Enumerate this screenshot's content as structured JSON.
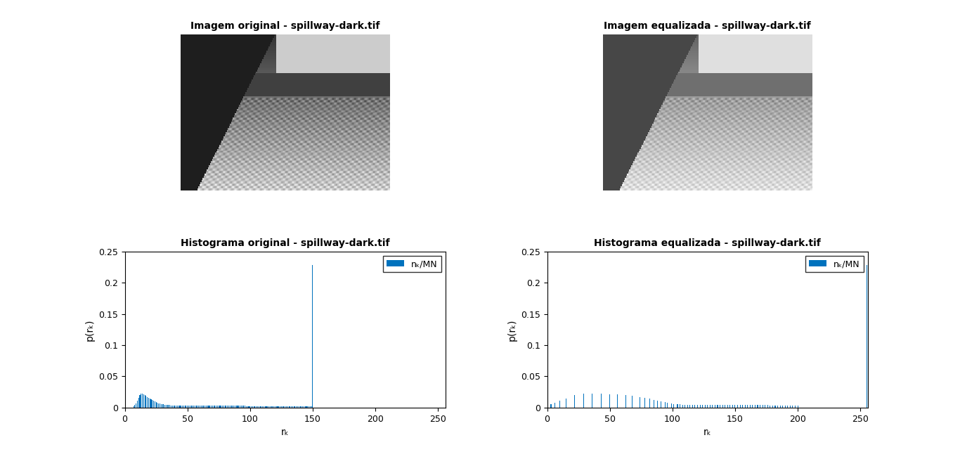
{
  "chart_data": [
    {
      "type": "image",
      "title": "Imagem original - spillway-dark.tif"
    },
    {
      "type": "image",
      "title": "Imagem equalizada - spillway-dark.tif"
    },
    {
      "type": "bar",
      "title": "Histograma original - spillway-dark.tif",
      "x_label": "rₖ",
      "y_label": "p(rₖ)",
      "x": [
        7,
        8,
        9,
        10,
        11,
        12,
        13,
        14,
        15,
        16,
        17,
        18,
        19,
        20,
        21,
        22,
        23,
        24,
        25,
        26,
        27,
        28,
        29,
        30,
        31,
        32,
        33,
        34,
        35,
        36,
        37,
        38,
        39,
        40,
        41,
        42,
        43,
        44,
        45,
        46,
        47,
        48,
        49,
        50,
        51,
        52,
        53,
        54,
        55,
        56,
        57,
        58,
        59,
        60,
        61,
        62,
        63,
        64,
        65,
        66,
        67,
        68,
        69,
        70,
        71,
        72,
        73,
        74,
        75,
        76,
        77,
        78,
        79,
        80,
        81,
        82,
        83,
        84,
        85,
        86,
        87,
        88,
        89,
        90,
        91,
        92,
        93,
        94,
        95,
        96,
        97,
        98,
        99,
        100,
        101,
        102,
        103,
        104,
        105,
        106,
        107,
        108,
        109,
        110,
        111,
        112,
        113,
        114,
        115,
        116,
        117,
        118,
        119,
        120,
        121,
        122,
        123,
        124,
        125,
        126,
        127,
        128,
        129,
        130,
        131,
        132,
        133,
        134,
        135,
        136,
        137,
        138,
        139,
        140,
        141,
        142,
        143,
        144,
        145,
        146,
        147,
        148,
        149,
        150
      ],
      "series": [
        {
          "name": "nₖ/MN",
          "color": "#0072bd",
          "values": [
            0.002,
            0.004,
            0.007,
            0.011,
            0.016,
            0.02,
            0.022,
            0.022,
            0.021,
            0.02,
            0.019,
            0.017,
            0.016,
            0.015,
            0.013,
            0.012,
            0.011,
            0.01,
            0.009,
            0.008,
            0.007,
            0.0065,
            0.006,
            0.0055,
            0.005,
            0.0047,
            0.0044,
            0.0042,
            0.004,
            0.0038,
            0.0036,
            0.0035,
            0.0034,
            0.0033,
            0.0032,
            0.0032,
            0.0031,
            0.0031,
            0.003,
            0.003,
            0.003,
            0.003,
            0.0029,
            0.0029,
            0.0029,
            0.0029,
            0.0028,
            0.0028,
            0.0028,
            0.0028,
            0.0028,
            0.0028,
            0.0028,
            0.0028,
            0.0028,
            0.0028,
            0.0028,
            0.0028,
            0.0028,
            0.0028,
            0.0028,
            0.0028,
            0.0028,
            0.0029,
            0.0029,
            0.0029,
            0.003,
            0.003,
            0.003,
            0.003,
            0.0031,
            0.0031,
            0.0031,
            0.0031,
            0.0031,
            0.0031,
            0.003,
            0.003,
            0.003,
            0.003,
            0.0029,
            0.0029,
            0.0029,
            0.0028,
            0.0028,
            0.0028,
            0.0027,
            0.0027,
            0.0027,
            0.0027,
            0.0026,
            0.0026,
            0.0026,
            0.0026,
            0.0026,
            0.0026,
            0.0026,
            0.0026,
            0.0026,
            0.0026,
            0.0026,
            0.0026,
            0.0026,
            0.0025,
            0.0025,
            0.0025,
            0.0025,
            0.0025,
            0.0025,
            0.0025,
            0.0025,
            0.0025,
            0.0025,
            0.0025,
            0.0025,
            0.0025,
            0.0025,
            0.0025,
            0.0025,
            0.0025,
            0.0025,
            0.0025,
            0.0025,
            0.0025,
            0.0025,
            0.0025,
            0.0025,
            0.0025,
            0.0025,
            0.0025,
            0.0025,
            0.0025,
            0.0025,
            0.0025,
            0.0025,
            0.0025,
            0.0025,
            0.0025,
            0.0025,
            0.0025,
            0.0025,
            0.0025,
            0.0025,
            0.228
          ]
        }
      ],
      "xlim": [
        0,
        256
      ],
      "ylim": [
        0,
        0.25
      ],
      "xticks": [
        0,
        50,
        100,
        150,
        200,
        250
      ],
      "yticks": [
        0,
        0.05,
        0.1,
        0.15,
        0.2,
        0.25
      ],
      "legend": "upper right"
    },
    {
      "type": "bar",
      "title": "Histograma equalizada - spillway-dark.tif",
      "x_label": "rₖ",
      "y_label": "p(rₖ)",
      "x": [
        3,
        6,
        10,
        15,
        22,
        29,
        36,
        43,
        50,
        56,
        63,
        68,
        74,
        78,
        82,
        85,
        88,
        91,
        94,
        96,
        99,
        101,
        104,
        106,
        108,
        110,
        112,
        114,
        116,
        118,
        120,
        122,
        124,
        126,
        128,
        130,
        132,
        134,
        136,
        138,
        140,
        142,
        144,
        146,
        148,
        150,
        152,
        154,
        156,
        158,
        160,
        162,
        164,
        166,
        168,
        170,
        172,
        174,
        176,
        178,
        180,
        182,
        184,
        186,
        188,
        190,
        192,
        194,
        196,
        198,
        200,
        255
      ],
      "series": [
        {
          "name": "nₖ/MN",
          "color": "#0072bd",
          "values": [
            0.005,
            0.008,
            0.011,
            0.014,
            0.02,
            0.022,
            0.022,
            0.022,
            0.021,
            0.021,
            0.02,
            0.019,
            0.017,
            0.016,
            0.014,
            0.012,
            0.011,
            0.01,
            0.009,
            0.008,
            0.007,
            0.006,
            0.0055,
            0.005,
            0.0048,
            0.0045,
            0.0045,
            0.0045,
            0.0045,
            0.0045,
            0.0045,
            0.004,
            0.004,
            0.004,
            0.004,
            0.004,
            0.004,
            0.004,
            0.004,
            0.004,
            0.004,
            0.004,
            0.004,
            0.004,
            0.004,
            0.004,
            0.0038,
            0.0038,
            0.0038,
            0.0038,
            0.0038,
            0.0038,
            0.0038,
            0.0038,
            0.0038,
            0.0038,
            0.0038,
            0.0038,
            0.0038,
            0.0035,
            0.0035,
            0.0035,
            0.0035,
            0.0035,
            0.0035,
            0.0035,
            0.0035,
            0.0035,
            0.0035,
            0.0035,
            0.0035,
            0.228
          ]
        }
      ],
      "xlim": [
        0,
        256
      ],
      "ylim": [
        0,
        0.25
      ],
      "xticks": [
        0,
        50,
        100,
        150,
        200,
        250
      ],
      "yticks": [
        0,
        0.05,
        0.1,
        0.15,
        0.2,
        0.25
      ],
      "legend": "upper right"
    }
  ]
}
